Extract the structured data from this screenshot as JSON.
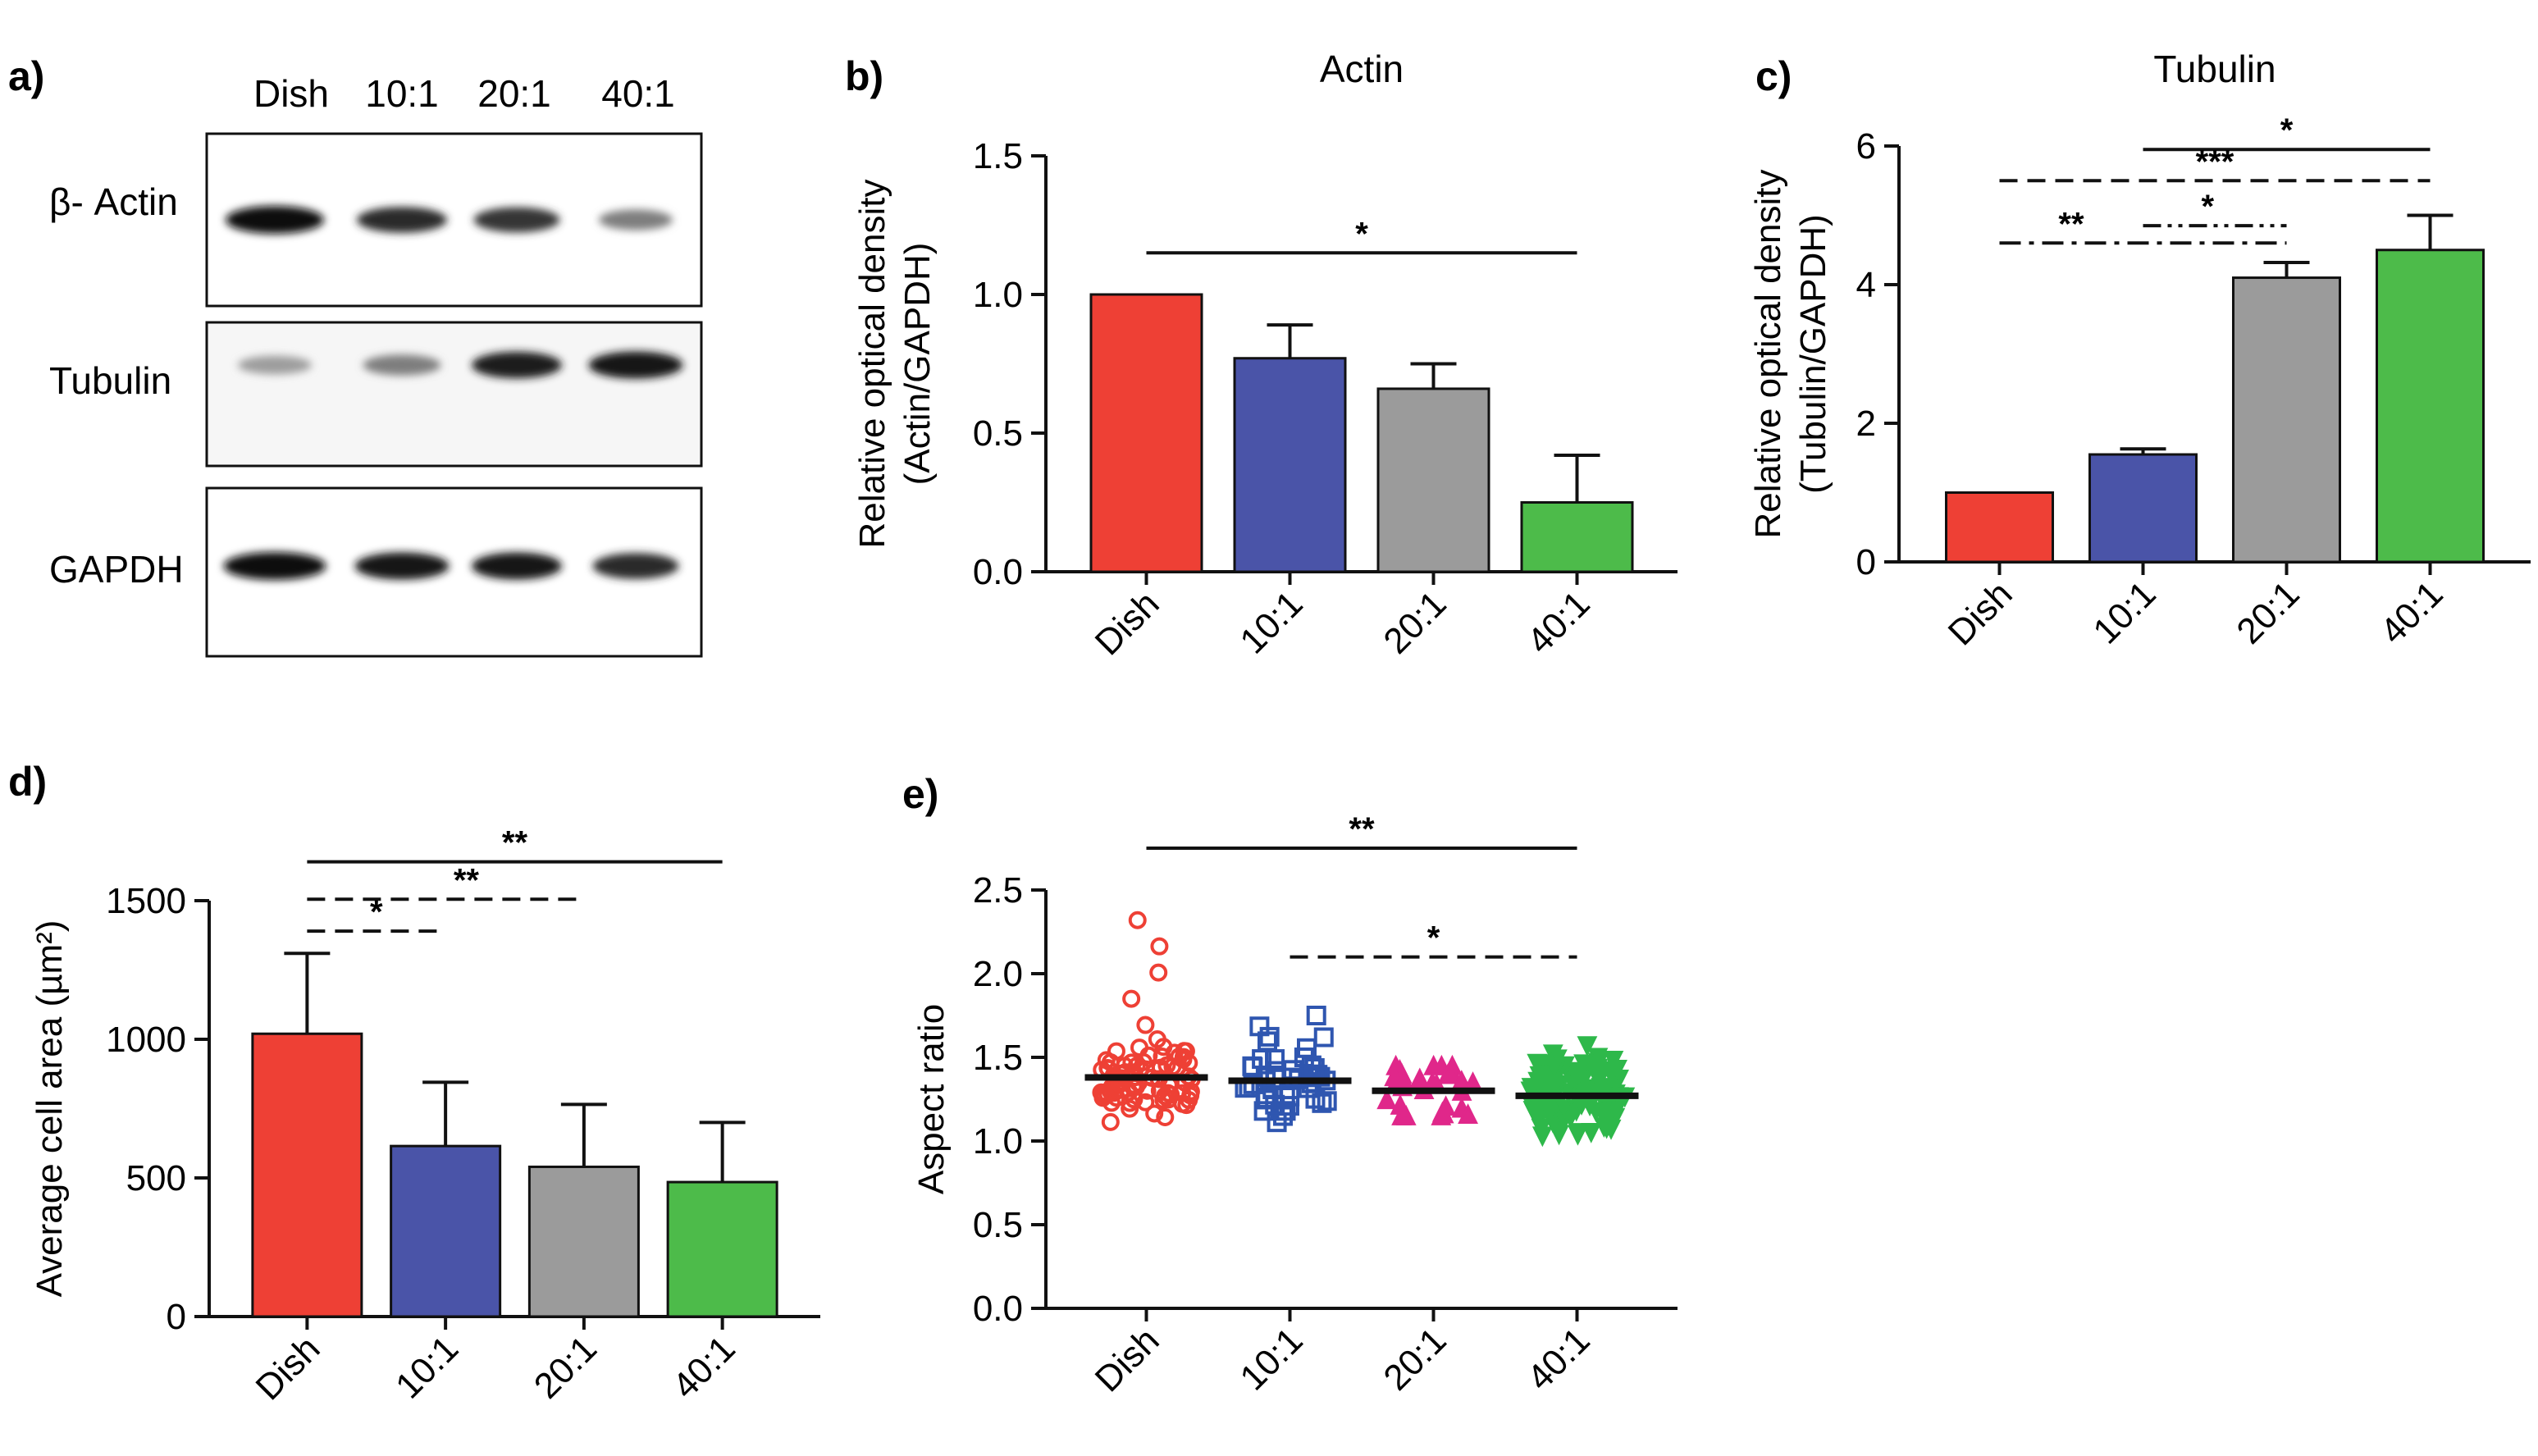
{
  "figure": {
    "panel_labels": [
      "a)",
      "b)",
      "c)",
      "d)",
      "e)"
    ],
    "colors": {
      "Dish": "#ee4035",
      "10:1": "#4a54a8",
      "20:1": "#9b9b9b",
      "40:1": "#4dbb4a",
      "e_10:1": "#2f56b0",
      "e_20:1": "#e0278a",
      "e_40:1": "#2eb84a",
      "axis": "#111111"
    }
  },
  "blot": {
    "lanes": [
      "Dish",
      "10:1",
      "20:1",
      "40:1"
    ],
    "rows": [
      {
        "label": "β- Actin",
        "intensity": [
          1.0,
          0.85,
          0.8,
          0.45
        ]
      },
      {
        "label": "Tubulin",
        "intensity": [
          0.3,
          0.45,
          0.9,
          0.95
        ]
      },
      {
        "label": "GAPDH",
        "intensity": [
          1.0,
          0.95,
          0.95,
          0.85
        ]
      }
    ]
  },
  "chart_data": [
    {
      "panel": "b)",
      "type": "bar",
      "title": "Actin",
      "ylabel_lines": [
        "Relative optical density",
        "(Actin/GAPDH)"
      ],
      "categories": [
        "Dish",
        "10:1",
        "20:1",
        "40:1"
      ],
      "values": [
        1.0,
        0.77,
        0.66,
        0.25
      ],
      "errors": [
        0.0,
        0.12,
        0.09,
        0.17
      ],
      "ylim": [
        0,
        1.5
      ],
      "yticks": [
        0.0,
        0.5,
        1.0,
        1.5
      ],
      "ytick_labels": [
        "0.0",
        "0.5",
        "1.0",
        "1.5"
      ],
      "significance": [
        {
          "from": 0,
          "to": 3,
          "label": "*",
          "style": "solid",
          "y": 1.15
        }
      ]
    },
    {
      "panel": "c)",
      "type": "bar",
      "title": "Tubulin",
      "ylabel_lines": [
        "Relative optical density",
        "(Tubulin/GAPDH)"
      ],
      "categories": [
        "Dish",
        "10:1",
        "20:1",
        "40:1"
      ],
      "values": [
        1.0,
        1.55,
        4.1,
        4.5
      ],
      "errors": [
        0.0,
        0.08,
        0.22,
        0.5
      ],
      "ylim": [
        0,
        6
      ],
      "yticks": [
        0,
        2,
        4,
        6
      ],
      "ytick_labels": [
        "0",
        "2",
        "4",
        "6"
      ],
      "significance": [
        {
          "from": 1,
          "to": 3,
          "label": "*",
          "style": "solid",
          "y": 5.95
        },
        {
          "from": 0,
          "to": 3,
          "label": "***",
          "style": "dashed",
          "y": 5.5
        },
        {
          "from": 0,
          "to": 2,
          "label": "**",
          "style": "dashdot",
          "y": 4.6,
          "label_x": 0.5
        },
        {
          "from": 1,
          "to": 2,
          "label": "*",
          "style": "dashdotdot",
          "y": 4.85,
          "label_x": 1.45
        }
      ]
    },
    {
      "panel": "d)",
      "type": "bar",
      "title": "",
      "ylabel_lines": [
        "Average cell area (µm²)"
      ],
      "categories": [
        "Dish",
        "10:1",
        "20:1",
        "40:1"
      ],
      "values": [
        1020,
        615,
        540,
        485
      ],
      "errors": [
        290,
        230,
        225,
        215
      ],
      "ylim": [
        0,
        1500
      ],
      "yticks": [
        0,
        500,
        1000,
        1500
      ],
      "ytick_labels": [
        "0",
        "500",
        "1000",
        "1500"
      ],
      "significance": [
        {
          "from": 0,
          "to": 3,
          "label": "**",
          "style": "solid",
          "y": 1640
        },
        {
          "from": 0,
          "to": 2,
          "label": "**",
          "style": "dashed",
          "y": 1505,
          "label_x": 1.15
        },
        {
          "from": 0,
          "to": 1,
          "label": "*",
          "style": "dashed",
          "y": 1390
        }
      ]
    },
    {
      "panel": "e)",
      "type": "scatter",
      "title": "",
      "ylabel_lines": [
        "Aspect ratio"
      ],
      "categories": [
        "Dish",
        "10:1",
        "20:1",
        "40:1"
      ],
      "means": [
        1.38,
        1.36,
        1.3,
        1.27
      ],
      "ranges": [
        [
          1.05,
          2.32
        ],
        [
          1.05,
          1.75
        ],
        [
          1.15,
          1.45
        ],
        [
          1.03,
          1.57
        ]
      ],
      "markers": [
        "circle",
        "square",
        "triangle-up",
        "triangle-down"
      ],
      "points_per_group": [
        85,
        45,
        30,
        110
      ],
      "ylim": [
        0,
        2.5
      ],
      "yticks": [
        0.0,
        0.5,
        1.0,
        1.5,
        2.0,
        2.5
      ],
      "ytick_labels": [
        "0.0",
        "0.5",
        "1.0",
        "1.5",
        "2.0",
        "2.5"
      ],
      "significance": [
        {
          "from": 0,
          "to": 3,
          "label": "**",
          "style": "solid",
          "y": 2.75
        },
        {
          "from": 1,
          "to": 3,
          "label": "*",
          "style": "dashed",
          "y": 2.1
        }
      ]
    }
  ]
}
